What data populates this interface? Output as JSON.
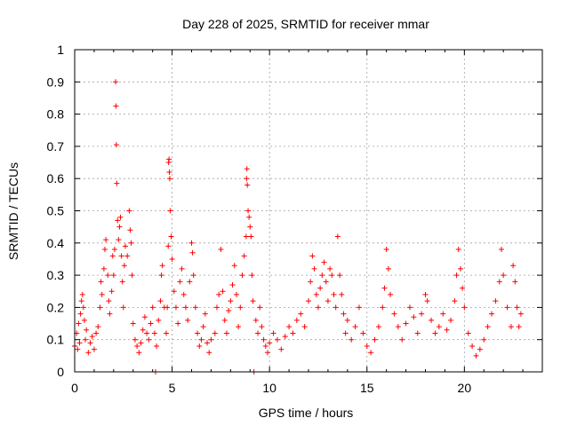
{
  "chart_data": {
    "type": "scatter",
    "title": "Day 228 of 2025, SRMTID for receiver mmar",
    "xlabel": "GPS time / hours",
    "ylabel": "SRMTID / TECUs",
    "xlim": [
      0,
      24
    ],
    "ylim": [
      0,
      1
    ],
    "xticks": [
      0,
      5,
      10,
      15,
      20
    ],
    "xtick_labels": [
      "0",
      "5",
      "10",
      "15",
      "20"
    ],
    "yticks": [
      0,
      0.1,
      0.2,
      0.3,
      0.4,
      0.5,
      0.6,
      0.7,
      0.8,
      0.9,
      1
    ],
    "ytick_labels": [
      "0",
      "0.1",
      "0.2",
      "0.3",
      "0.4",
      "0.5",
      "0.6",
      "0.7",
      "0.8",
      "0.9",
      "1"
    ],
    "grid": true,
    "marker": "+",
    "series": [
      {
        "color": "#ff0000",
        "points": [
          [
            0.0,
            0.08
          ],
          [
            0.1,
            0.12
          ],
          [
            0.15,
            0.07
          ],
          [
            0.2,
            0.15
          ],
          [
            0.25,
            0.09
          ],
          [
            0.3,
            0.18
          ],
          [
            0.35,
            0.22
          ],
          [
            0.4,
            0.24
          ],
          [
            0.45,
            0.2
          ],
          [
            0.5,
            0.16
          ],
          [
            0.55,
            0.1
          ],
          [
            0.6,
            0.13
          ],
          [
            0.7,
            0.06
          ],
          [
            0.8,
            0.09
          ],
          [
            0.9,
            0.11
          ],
          [
            1.0,
            0.07
          ],
          [
            1.1,
            0.12
          ],
          [
            1.2,
            0.14
          ],
          [
            1.3,
            0.2
          ],
          [
            1.35,
            0.28
          ],
          [
            1.4,
            0.24
          ],
          [
            1.5,
            0.32
          ],
          [
            1.55,
            0.38
          ],
          [
            1.6,
            0.41
          ],
          [
            1.7,
            0.3
          ],
          [
            1.75,
            0.22
          ],
          [
            1.8,
            0.18
          ],
          [
            1.9,
            0.25
          ],
          [
            1.95,
            0.36
          ],
          [
            2.0,
            0.3
          ],
          [
            2.05,
            0.38
          ],
          [
            2.1,
            0.9
          ],
          [
            2.12,
            0.825
          ],
          [
            2.14,
            0.705
          ],
          [
            2.16,
            0.585
          ],
          [
            2.2,
            0.47
          ],
          [
            2.25,
            0.41
          ],
          [
            2.3,
            0.45
          ],
          [
            2.35,
            0.48
          ],
          [
            2.4,
            0.36
          ],
          [
            2.45,
            0.28
          ],
          [
            2.5,
            0.2
          ],
          [
            2.55,
            0.33
          ],
          [
            2.6,
            0.39
          ],
          [
            2.7,
            0.36
          ],
          [
            2.8,
            0.5
          ],
          [
            2.85,
            0.44
          ],
          [
            2.9,
            0.4
          ],
          [
            2.95,
            0.3
          ],
          [
            3.0,
            0.15
          ],
          [
            3.1,
            0.1
          ],
          [
            3.2,
            0.08
          ],
          [
            3.3,
            0.06
          ],
          [
            3.4,
            0.09
          ],
          [
            3.5,
            0.13
          ],
          [
            3.6,
            0.17
          ],
          [
            3.7,
            0.12
          ],
          [
            3.8,
            0.1
          ],
          [
            3.9,
            0.15
          ],
          [
            4.0,
            0.2
          ],
          [
            4.1,
            0.12
          ],
          [
            4.15,
            0.0
          ],
          [
            4.2,
            0.08
          ],
          [
            4.3,
            0.16
          ],
          [
            4.4,
            0.22
          ],
          [
            4.45,
            0.3
          ],
          [
            4.5,
            0.33
          ],
          [
            4.6,
            0.2
          ],
          [
            4.7,
            0.12
          ],
          [
            4.75,
            0.2
          ],
          [
            4.8,
            0.39
          ],
          [
            4.82,
            0.65
          ],
          [
            4.84,
            0.66
          ],
          [
            4.86,
            0.62
          ],
          [
            4.88,
            0.6
          ],
          [
            4.9,
            0.5
          ],
          [
            4.95,
            0.42
          ],
          [
            5.0,
            0.35
          ],
          [
            5.1,
            0.25
          ],
          [
            5.2,
            0.2
          ],
          [
            5.3,
            0.15
          ],
          [
            5.4,
            0.28
          ],
          [
            5.5,
            0.32
          ],
          [
            5.6,
            0.24
          ],
          [
            5.7,
            0.2
          ],
          [
            5.8,
            0.16
          ],
          [
            5.9,
            0.28
          ],
          [
            6.0,
            0.4
          ],
          [
            6.05,
            0.37
          ],
          [
            6.1,
            0.3
          ],
          [
            6.2,
            0.2
          ],
          [
            6.3,
            0.12
          ],
          [
            6.4,
            0.08
          ],
          [
            6.5,
            0.1
          ],
          [
            6.6,
            0.14
          ],
          [
            6.7,
            0.18
          ],
          [
            6.8,
            0.09
          ],
          [
            6.9,
            0.06
          ],
          [
            7.0,
            0.1
          ],
          [
            7.2,
            0.12
          ],
          [
            7.3,
            0.2
          ],
          [
            7.4,
            0.24
          ],
          [
            7.5,
            0.38
          ],
          [
            7.6,
            0.25
          ],
          [
            7.7,
            0.16
          ],
          [
            7.8,
            0.12
          ],
          [
            7.9,
            0.19
          ],
          [
            8.0,
            0.22
          ],
          [
            8.1,
            0.27
          ],
          [
            8.2,
            0.33
          ],
          [
            8.3,
            0.24
          ],
          [
            8.4,
            0.14
          ],
          [
            8.5,
            0.2
          ],
          [
            8.6,
            0.3
          ],
          [
            8.7,
            0.36
          ],
          [
            8.8,
            0.42
          ],
          [
            8.82,
            0.6
          ],
          [
            8.84,
            0.63
          ],
          [
            8.86,
            0.58
          ],
          [
            8.9,
            0.5
          ],
          [
            8.95,
            0.48
          ],
          [
            9.0,
            0.45
          ],
          [
            9.05,
            0.42
          ],
          [
            9.1,
            0.3
          ],
          [
            9.15,
            0.22
          ],
          [
            9.2,
            0.0
          ],
          [
            9.3,
            0.16
          ],
          [
            9.4,
            0.12
          ],
          [
            9.5,
            0.2
          ],
          [
            9.6,
            0.14
          ],
          [
            9.7,
            0.1
          ],
          [
            9.8,
            0.08
          ],
          [
            9.9,
            0.06
          ],
          [
            10.0,
            0.09
          ],
          [
            10.2,
            0.12
          ],
          [
            10.4,
            0.1
          ],
          [
            10.6,
            0.07
          ],
          [
            10.8,
            0.11
          ],
          [
            11.0,
            0.14
          ],
          [
            11.2,
            0.12
          ],
          [
            11.4,
            0.16
          ],
          [
            11.6,
            0.18
          ],
          [
            11.8,
            0.14
          ],
          [
            12.0,
            0.22
          ],
          [
            12.1,
            0.28
          ],
          [
            12.2,
            0.36
          ],
          [
            12.3,
            0.32
          ],
          [
            12.4,
            0.24
          ],
          [
            12.5,
            0.2
          ],
          [
            12.6,
            0.26
          ],
          [
            12.7,
            0.3
          ],
          [
            12.8,
            0.34
          ],
          [
            12.9,
            0.28
          ],
          [
            13.0,
            0.22
          ],
          [
            13.1,
            0.32
          ],
          [
            13.2,
            0.3
          ],
          [
            13.3,
            0.24
          ],
          [
            13.4,
            0.2
          ],
          [
            13.5,
            0.42
          ],
          [
            13.6,
            0.3
          ],
          [
            13.7,
            0.24
          ],
          [
            13.8,
            0.18
          ],
          [
            13.9,
            0.12
          ],
          [
            14.0,
            0.16
          ],
          [
            14.2,
            0.1
          ],
          [
            14.4,
            0.14
          ],
          [
            14.6,
            0.2
          ],
          [
            14.8,
            0.12
          ],
          [
            15.0,
            0.08
          ],
          [
            15.2,
            0.06
          ],
          [
            15.4,
            0.1
          ],
          [
            15.6,
            0.14
          ],
          [
            15.8,
            0.2
          ],
          [
            15.9,
            0.26
          ],
          [
            16.0,
            0.38
          ],
          [
            16.1,
            0.32
          ],
          [
            16.2,
            0.24
          ],
          [
            16.4,
            0.18
          ],
          [
            16.6,
            0.14
          ],
          [
            16.8,
            0.1
          ],
          [
            17.0,
            0.15
          ],
          [
            17.2,
            0.2
          ],
          [
            17.4,
            0.17
          ],
          [
            17.6,
            0.12
          ],
          [
            17.8,
            0.18
          ],
          [
            18.0,
            0.24
          ],
          [
            18.1,
            0.22
          ],
          [
            18.3,
            0.16
          ],
          [
            18.5,
            0.12
          ],
          [
            18.7,
            0.14
          ],
          [
            18.9,
            0.18
          ],
          [
            19.1,
            0.13
          ],
          [
            19.3,
            0.16
          ],
          [
            19.5,
            0.22
          ],
          [
            19.6,
            0.3
          ],
          [
            19.7,
            0.38
          ],
          [
            19.8,
            0.32
          ],
          [
            19.9,
            0.26
          ],
          [
            20.0,
            0.2
          ],
          [
            20.2,
            0.12
          ],
          [
            20.4,
            0.08
          ],
          [
            20.6,
            0.05
          ],
          [
            20.8,
            0.07
          ],
          [
            21.0,
            0.1
          ],
          [
            21.2,
            0.14
          ],
          [
            21.4,
            0.18
          ],
          [
            21.6,
            0.22
          ],
          [
            21.8,
            0.28
          ],
          [
            21.9,
            0.38
          ],
          [
            22.0,
            0.3
          ],
          [
            22.2,
            0.2
          ],
          [
            22.4,
            0.14
          ],
          [
            22.5,
            0.33
          ],
          [
            22.6,
            0.28
          ],
          [
            22.7,
            0.2
          ],
          [
            22.8,
            0.14
          ],
          [
            22.9,
            0.18
          ]
        ]
      }
    ]
  }
}
